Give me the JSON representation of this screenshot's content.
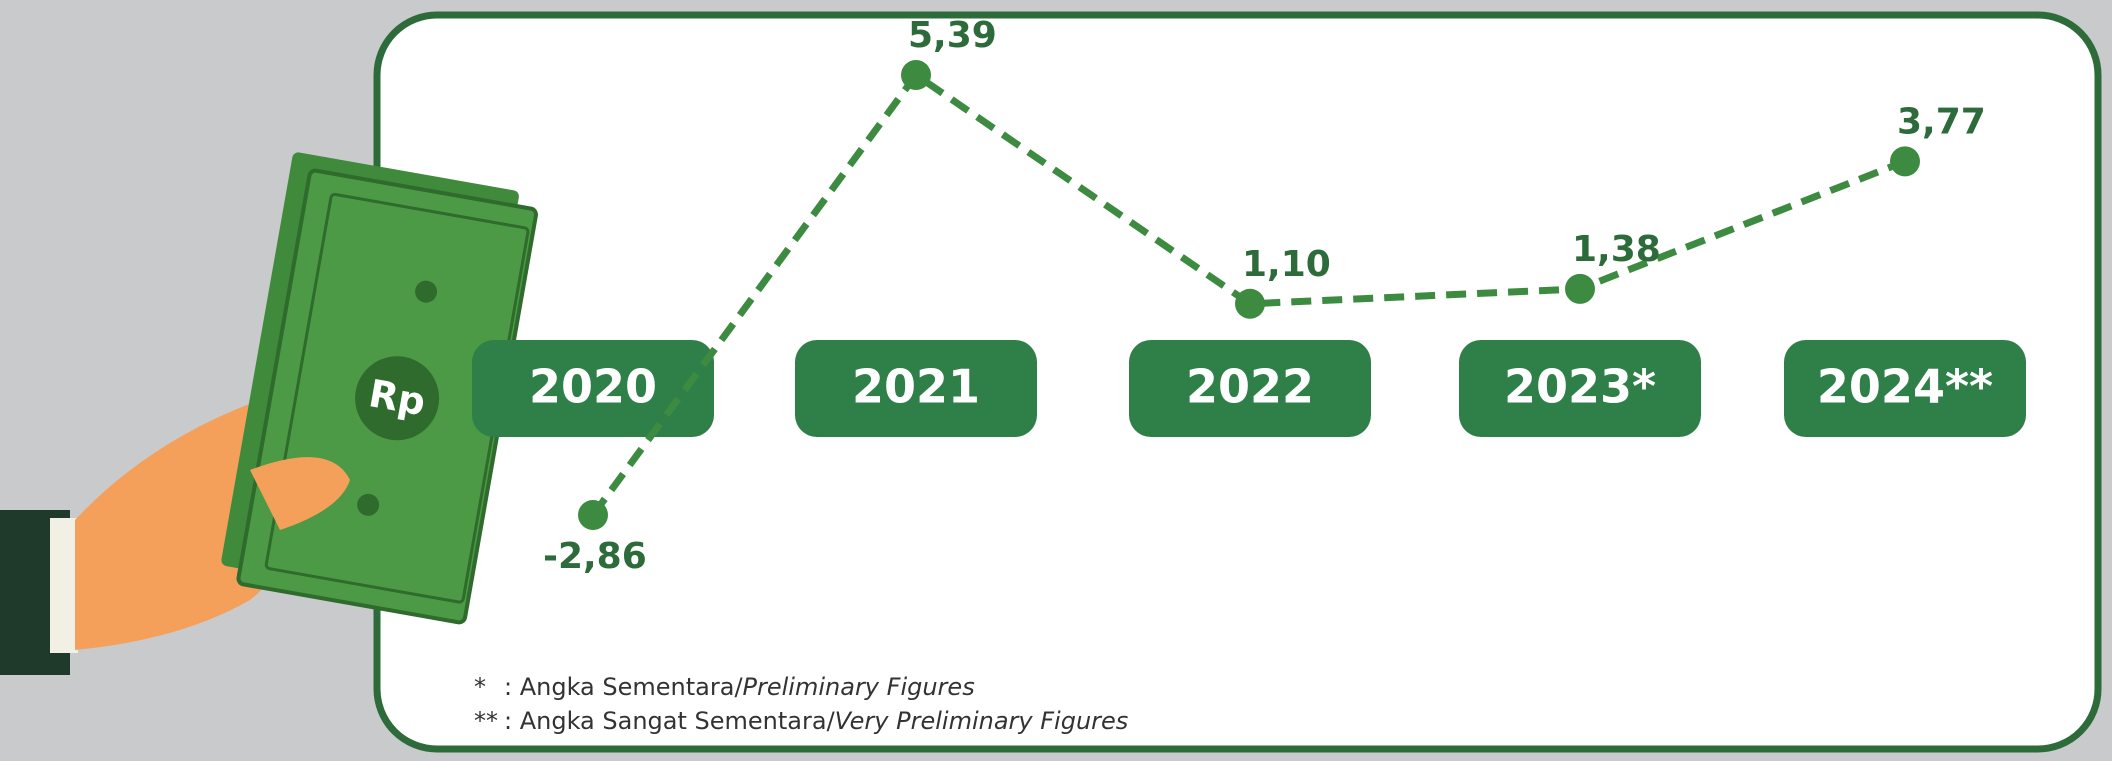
{
  "chart_data": {
    "type": "line",
    "categories": [
      "2020",
      "2021",
      "2022",
      "2023*",
      "2024**"
    ],
    "values": [
      -2.86,
      5.39,
      1.1,
      1.38,
      3.77
    ],
    "value_labels": [
      "-2,86",
      "5,39",
      "1,10",
      "1,38",
      "3,77"
    ],
    "color": "#3d8b40",
    "notes": [
      {
        "mark": "*",
        "text": ": Angka Sementara/",
        "italic": "Preliminary Figures"
      },
      {
        "mark": "**",
        "text": ": Angka Sangat Sementara/",
        "italic": "Very Preliminary Figures"
      }
    ]
  }
}
